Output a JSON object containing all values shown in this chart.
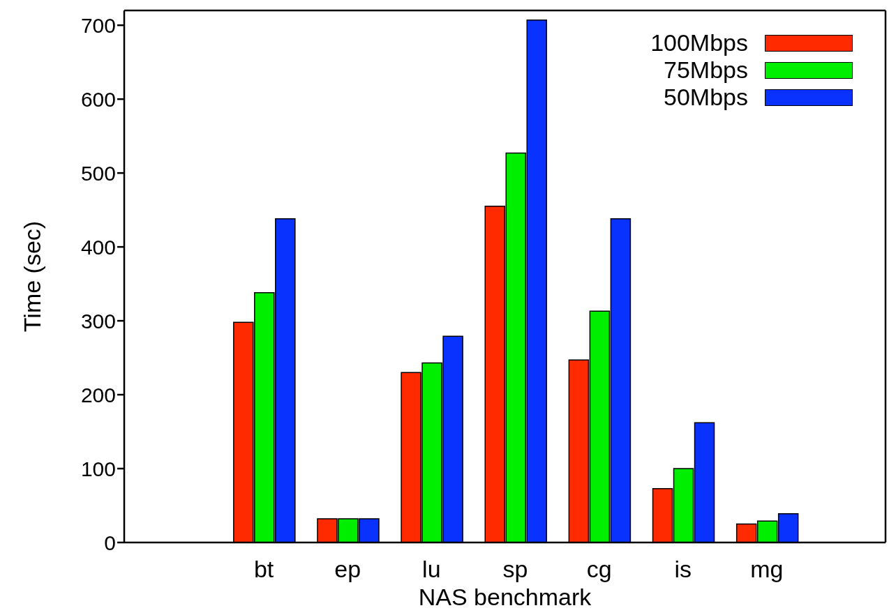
{
  "chart_data": {
    "type": "bar",
    "xlabel": "NAS benchmark",
    "ylabel": "Time (sec)",
    "categories": [
      "bt",
      "ep",
      "lu",
      "sp",
      "cg",
      "is",
      "mg"
    ],
    "series": [
      {
        "name": "100Mbps",
        "color": "#ff2a00",
        "values": [
          298,
          32,
          230,
          455,
          247,
          73,
          25
        ]
      },
      {
        "name": "75Mbps",
        "color": "#00ee00",
        "values": [
          338,
          32,
          243,
          527,
          313,
          100,
          29
        ]
      },
      {
        "name": "50Mbps",
        "color": "#0a32ff",
        "values": [
          438,
          32,
          279,
          707,
          438,
          162,
          39
        ]
      }
    ],
    "ylim": [
      0,
      720
    ],
    "yticks": [
      0,
      100,
      200,
      300,
      400,
      500,
      600,
      700
    ],
    "grid": false,
    "legend": "top right"
  }
}
